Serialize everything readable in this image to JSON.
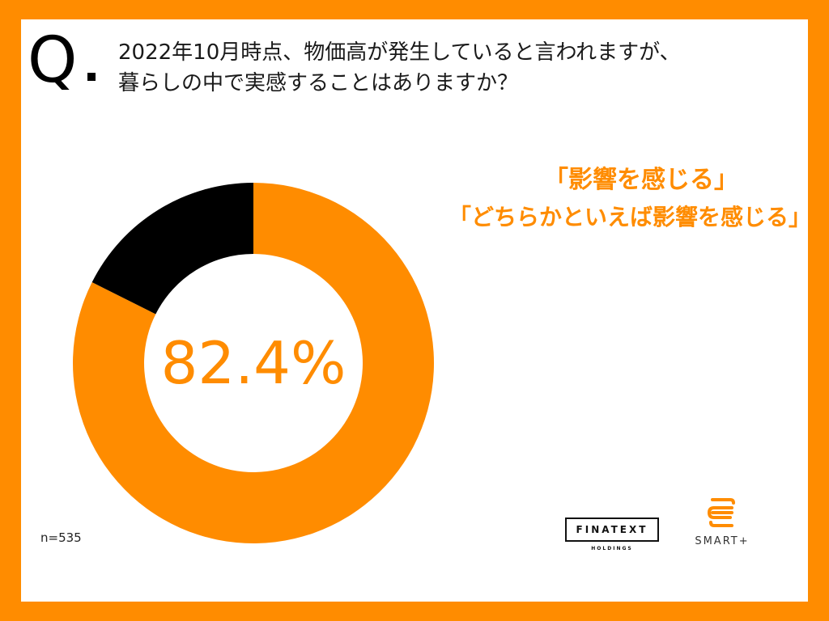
{
  "question": {
    "mark": "Q",
    "line1": "2022年10月時点、物価高が発生していると言われますが、",
    "line2": "暮らしの中で実感することはありますか？"
  },
  "highlight": {
    "line1": "「影響を感じる」",
    "line2": "「どちらかといえば影響を感じる」"
  },
  "sample_size": "n=535",
  "logos": {
    "finatext": "FINATEXT",
    "finatext_sub": "HOLDINGS",
    "smart": "SMART+"
  },
  "chart_data": {
    "type": "pie",
    "center_label": "82.4%",
    "slices": [
      {
        "value": 82.4,
        "color": "#FF8C00"
      },
      {
        "value": 17.6,
        "color": "#000000"
      }
    ]
  }
}
